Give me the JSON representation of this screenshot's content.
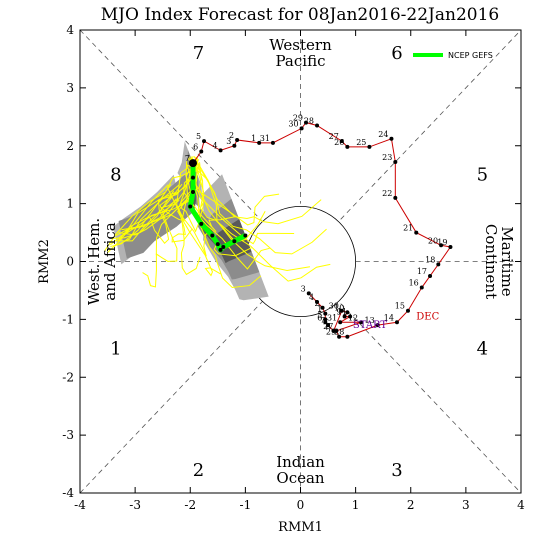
{
  "chart_data": {
    "type": "line",
    "title": "MJO Index Forecast for 08Jan2016-22Jan2016",
    "xlabel": "RMM1",
    "ylabel": "RMM2",
    "xlim": [
      -4,
      4
    ],
    "ylim": [
      -4,
      4
    ],
    "xticks": [
      "-4",
      "-3",
      "-2",
      "-1",
      "0",
      "1",
      "2",
      "3",
      "4"
    ],
    "yticks": [
      "-4",
      "-3",
      "-2",
      "-1",
      "0",
      "1",
      "2",
      "3",
      "4"
    ],
    "phases": [
      {
        "label": "1",
        "x": -3.35,
        "y": -1.5
      },
      {
        "label": "2",
        "x": -1.85,
        "y": -3.6
      },
      {
        "label": "3",
        "x": 1.75,
        "y": -3.6
      },
      {
        "label": "4",
        "x": 3.3,
        "y": -1.5
      },
      {
        "label": "5",
        "x": 3.3,
        "y": 1.5
      },
      {
        "label": "6",
        "x": 1.75,
        "y": 3.6
      },
      {
        "label": "7",
        "x": -1.85,
        "y": 3.6
      },
      {
        "label": "8",
        "x": -3.35,
        "y": 1.5
      }
    ],
    "regions": [
      {
        "lines": [
          "Western",
          "Pacific"
        ],
        "x": 0,
        "y": 3.6,
        "rotate": 0
      },
      {
        "lines": [
          "Indian",
          "Ocean"
        ],
        "x": 0,
        "y": -3.6,
        "rotate": 0
      },
      {
        "lines": [
          "West. Hem.",
          "and Africa"
        ],
        "x": -3.6,
        "y": 0,
        "rotate": -90
      },
      {
        "lines": [
          "Maritime",
          "Continent"
        ],
        "x": 3.6,
        "y": 0,
        "rotate": 90
      }
    ],
    "legend": {
      "label": "NCEP GEFS",
      "color": "#00ff00",
      "position": "top-right"
    },
    "observed": {
      "color": "#cc0000",
      "points": [
        {
          "label": "3",
          "x": 0.15,
          "y": -0.55
        },
        {
          "label": "4",
          "x": 0.3,
          "y": -0.7
        },
        {
          "label": "2",
          "x": 0.4,
          "y": -0.8
        },
        {
          "label": "1",
          "x": 0.45,
          "y": -0.9
        },
        {
          "label": "5",
          "x": 0.45,
          "y": -1.0
        },
        {
          "label": "6",
          "x": 0.45,
          "y": -1.05
        },
        {
          "label": "7",
          "x": 0.5,
          "y": -1.1
        },
        {
          "label": "8",
          "x": 0.6,
          "y": -1.2
        },
        {
          "label": "30",
          "x": 0.75,
          "y": -0.85
        },
        {
          "label": "10",
          "x": 0.85,
          "y": -0.88
        },
        {
          "label": "9",
          "x": 0.8,
          "y": -0.95
        },
        {
          "label": "11",
          "x": 0.9,
          "y": -0.95
        },
        {
          "label": "31",
          "x": 0.72,
          "y": -1.05
        },
        {
          "label": "12",
          "x": 1.1,
          "y": -1.05
        },
        {
          "label": "27",
          "x": 0.65,
          "y": -1.2
        },
        {
          "label": "29",
          "x": 0.7,
          "y": -1.3
        },
        {
          "label": "28",
          "x": 0.85,
          "y": -1.3
        },
        {
          "label": "13",
          "x": 1.4,
          "y": -1.1
        },
        {
          "label": "14",
          "x": 1.75,
          "y": -1.05
        },
        {
          "label": "15",
          "x": 1.95,
          "y": -0.85
        },
        {
          "label": "16",
          "x": 2.2,
          "y": -0.45
        },
        {
          "label": "17",
          "x": 2.35,
          "y": -0.25
        },
        {
          "label": "18",
          "x": 2.5,
          "y": -0.05
        },
        {
          "label": "19",
          "x": 2.72,
          "y": 0.25
        },
        {
          "label": "20",
          "x": 2.55,
          "y": 0.28
        },
        {
          "label": "21",
          "x": 2.1,
          "y": 0.5
        },
        {
          "label": "22",
          "x": 1.72,
          "y": 1.1
        },
        {
          "label": "23",
          "x": 1.72,
          "y": 1.72
        },
        {
          "label": "24",
          "x": 1.65,
          "y": 2.12
        },
        {
          "label": "25",
          "x": 1.25,
          "y": 1.98
        },
        {
          "label": "26",
          "x": 0.85,
          "y": 1.98
        },
        {
          "label": "27",
          "x": 0.75,
          "y": 2.08
        },
        {
          "label": "28",
          "x": 0.3,
          "y": 2.35
        },
        {
          "label": "29",
          "x": 0.1,
          "y": 2.4
        },
        {
          "label": "30",
          "x": 0.02,
          "y": 2.3
        },
        {
          "label": "31",
          "x": -0.5,
          "y": 2.05
        },
        {
          "label": "1",
          "x": -0.75,
          "y": 2.05
        },
        {
          "label": "2",
          "x": -1.15,
          "y": 2.1
        },
        {
          "label": "3",
          "x": -1.2,
          "y": 2.0
        },
        {
          "label": "4",
          "x": -1.45,
          "y": 1.92
        },
        {
          "label": "5",
          "x": -1.75,
          "y": 2.08
        },
        {
          "label": "6",
          "x": -1.8,
          "y": 1.9
        },
        {
          "label": "7",
          "x": -1.95,
          "y": 1.7
        }
      ],
      "annotations": [
        {
          "text": "DEC",
          "x": 2.1,
          "y": -1.0,
          "color": "#cc0000"
        },
        {
          "text": "START",
          "x": 0.95,
          "y": -1.15,
          "color": "#660099"
        }
      ]
    },
    "ensemble_mean": {
      "name": "NCEP GEFS",
      "color": "#00ff00",
      "x": [
        -1.95,
        -1.95,
        -1.95,
        -2.0,
        -1.8,
        -1.6,
        -1.5,
        -1.45,
        -1.4,
        -1.2,
        -1.0
      ],
      "y": [
        1.7,
        1.45,
        1.2,
        0.95,
        0.65,
        0.45,
        0.3,
        0.2,
        0.25,
        0.35,
        0.45
      ]
    },
    "ensemble_members_first_guess": [
      {
        "x": [
          -2.3,
          -2.6,
          -2.9,
          -3.2,
          -3.4
        ],
        "y": [
          1.2,
          0.9,
          0.65,
          0.45,
          0.3
        ]
      },
      {
        "x": [
          -2.1,
          -2.4,
          -2.8,
          -3.0,
          -3.3
        ],
        "y": [
          1.2,
          0.95,
          0.7,
          0.5,
          0.4
        ]
      }
    ]
  }
}
